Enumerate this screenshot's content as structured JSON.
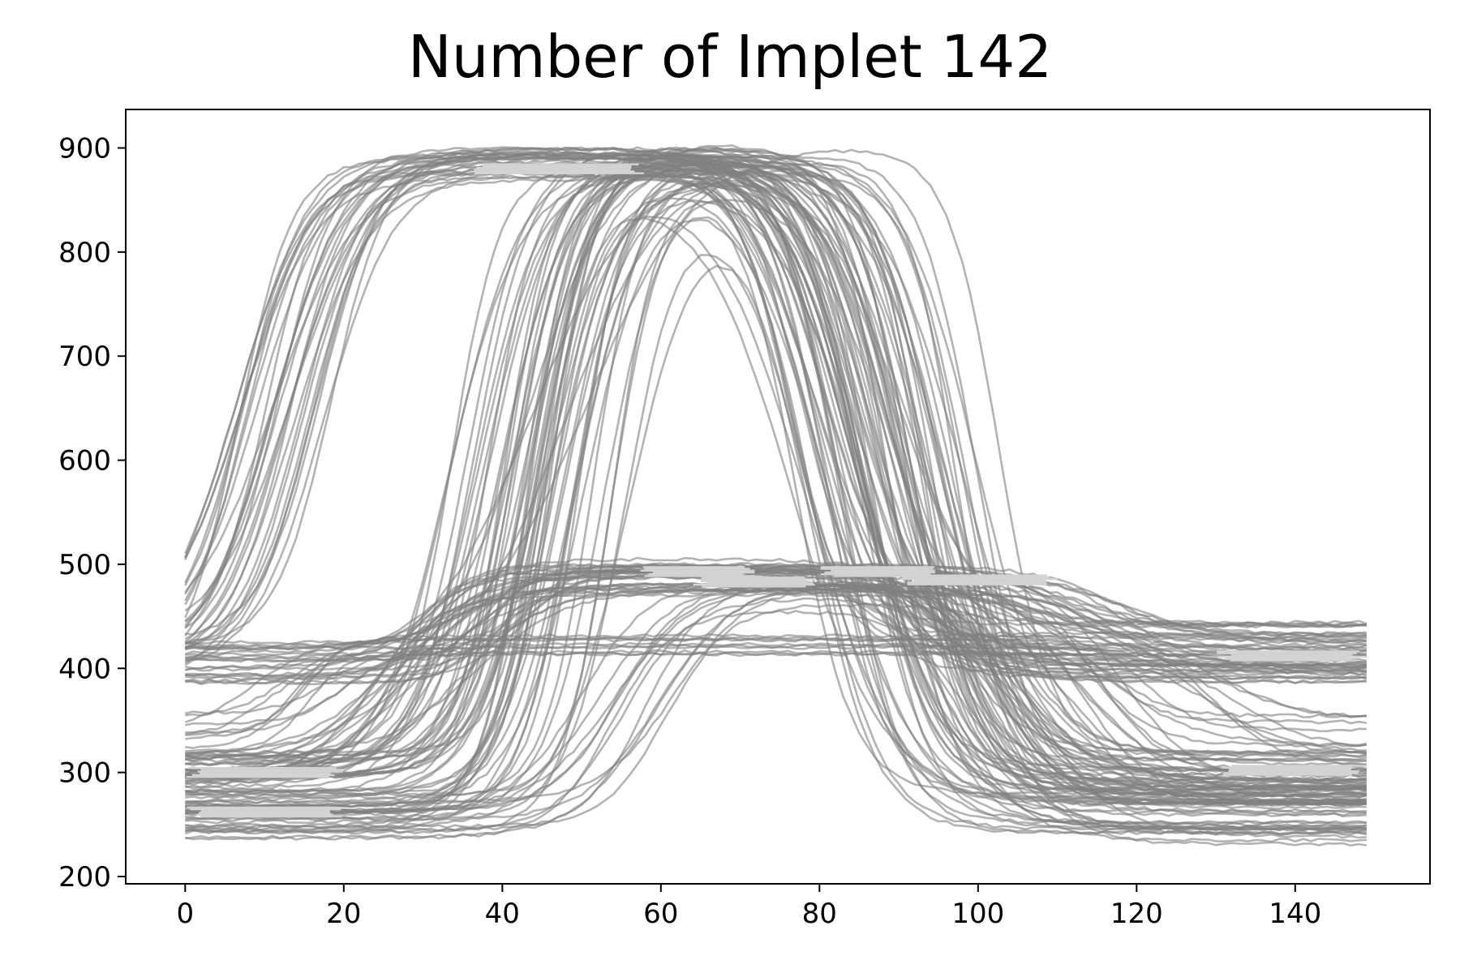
{
  "chart_data": {
    "type": "line",
    "title": "Number of Implet 142",
    "xlabel": "",
    "ylabel": "",
    "xlim": [
      -7.5,
      157
    ],
    "ylim": [
      193,
      937
    ],
    "x_ticks": [
      0,
      20,
      40,
      60,
      80,
      100,
      120,
      140
    ],
    "y_ticks": [
      200,
      300,
      400,
      500,
      600,
      700,
      800,
      900
    ],
    "x_range": [
      0,
      149
    ],
    "grid": false,
    "legend": "none",
    "line_color": "#808080",
    "line_opacity": 0.6,
    "highlight_color": "#d3d3d3",
    "series_groups": [
      {
        "count": 30,
        "y_start": 410,
        "rise_center": 12,
        "rise_width": 4,
        "y_high": 885,
        "fall_center": 83,
        "fall_width": 4,
        "y_end": 415
      },
      {
        "count": 30,
        "y_start": 300,
        "rise_center": 40,
        "rise_width": 3.5,
        "y_high": 890,
        "fall_center": 92,
        "fall_width": 4,
        "y_end": 290
      },
      {
        "count": 22,
        "y_start": 260,
        "rise_center": 50,
        "rise_width": 3.5,
        "y_high": 880,
        "fall_center": 84,
        "fall_width": 4.5,
        "y_end": 265
      },
      {
        "count": 18,
        "y_start": 405,
        "rise_center": 36,
        "rise_width": 3,
        "y_high": 485,
        "fall_center": 112,
        "fall_width": 5,
        "y_end": 415
      },
      {
        "count": 16,
        "y_start": 300,
        "rise_center": 30,
        "rise_width": 5,
        "y_high": 490,
        "fall_center": 110,
        "fall_width": 5,
        "y_end": 300
      },
      {
        "count": 12,
        "y_start": 255,
        "rise_center": 55,
        "rise_width": 4,
        "y_high": 470,
        "fall_center": 105,
        "fall_width": 4,
        "y_end": 255
      },
      {
        "count": 10,
        "y_start": 340,
        "rise_center": 14,
        "rise_width": 3,
        "y_high": 420,
        "fall_center": 125,
        "fall_width": 4,
        "y_end": 330
      },
      {
        "count": 4,
        "y_start": 400,
        "rise_center": 48,
        "rise_width": 6,
        "y_high": 895,
        "fall_center": 100,
        "fall_width": 3,
        "y_end": 290
      }
    ],
    "highlight_segments": [
      {
        "x": [
          36,
          58
        ],
        "y": 880
      },
      {
        "x": [
          0,
          20
        ],
        "y": 300
      },
      {
        "x": [
          0,
          20
        ],
        "y": 262
      },
      {
        "x": [
          130,
          149
        ],
        "y": 412
      },
      {
        "x": [
          57,
          72
        ],
        "y": 493
      },
      {
        "x": [
          64,
          80
        ],
        "y": 483
      },
      {
        "x": [
          80,
          95
        ],
        "y": 493
      },
      {
        "x": [
          90,
          110
        ],
        "y": 485
      },
      {
        "x": [
          130,
          149
        ],
        "y": 302
      }
    ]
  }
}
